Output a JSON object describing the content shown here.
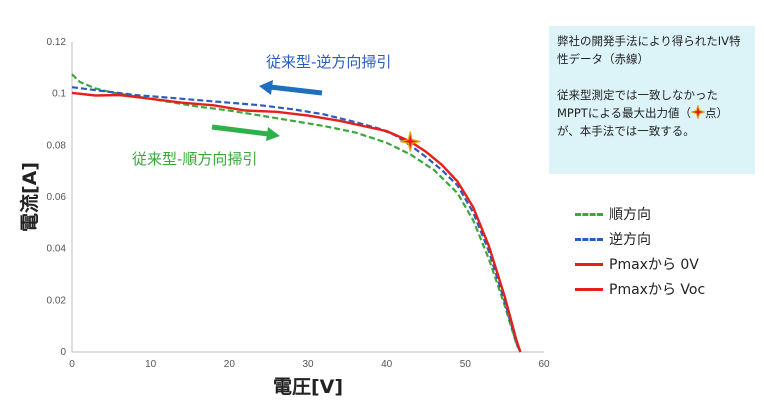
{
  "chart_data": {
    "type": "line",
    "xlabel": "電圧[V]",
    "ylabel": "電流[A]",
    "xlim": [
      0,
      60
    ],
    "ylim": [
      0,
      0.12
    ],
    "x_ticks": [
      "0",
      "10",
      "20",
      "30",
      "40",
      "50",
      "60"
    ],
    "y_ticks": [
      "0",
      "0.02",
      "0.04",
      "0.06",
      "0.08",
      "0.1",
      "0.12"
    ],
    "grid": false,
    "legend_position": "right",
    "series": [
      {
        "name": "順方向",
        "color": "#3aa83a",
        "style": "dashed",
        "x": [
          0,
          1,
          3,
          5,
          8,
          12,
          16,
          20,
          24,
          28,
          32,
          36,
          40,
          43,
          46,
          49,
          51,
          53,
          55,
          56.5,
          57
        ],
        "y": [
          0.1075,
          0.1045,
          0.102,
          0.1005,
          0.099,
          0.097,
          0.095,
          0.0935,
          0.0915,
          0.0895,
          0.0875,
          0.085,
          0.081,
          0.0765,
          0.0705,
          0.0615,
          0.051,
          0.036,
          0.018,
          0.003,
          0
        ]
      },
      {
        "name": "逆方向",
        "color": "#2a5cbf",
        "style": "dashed",
        "x": [
          0,
          4,
          8,
          12,
          16,
          20,
          24,
          28,
          32,
          36,
          39,
          41,
          43,
          45,
          47,
          49,
          51,
          53,
          55,
          56.5,
          57
        ],
        "y": [
          0.1025,
          0.101,
          0.0995,
          0.0985,
          0.0975,
          0.0965,
          0.0955,
          0.094,
          0.092,
          0.089,
          0.0865,
          0.084,
          0.08,
          0.0755,
          0.0705,
          0.0645,
          0.054,
          0.039,
          0.0195,
          0.0035,
          0
        ]
      },
      {
        "name": "Pmaxから 0V",
        "color": "#e5201b",
        "style": "solid",
        "x": [
          0,
          3,
          6,
          10,
          14,
          18,
          22,
          26,
          30,
          34,
          37,
          40,
          43
        ],
        "y": [
          0.1003,
          0.0993,
          0.0995,
          0.098,
          0.0965,
          0.0955,
          0.0935,
          0.093,
          0.0915,
          0.0895,
          0.0875,
          0.0855,
          0.0815
        ]
      },
      {
        "name": "Pmaxから Voc",
        "color": "#e5201b",
        "style": "solid",
        "x": [
          43,
          45,
          47,
          49,
          51,
          53,
          55,
          56.5,
          57
        ],
        "y": [
          0.0815,
          0.0775,
          0.0725,
          0.066,
          0.056,
          0.041,
          0.0215,
          0.0045,
          0
        ]
      }
    ],
    "pmax_point": {
      "x": 43,
      "y": 0.0815
    },
    "annotations": [
      {
        "text": "従来型-逆方向掃引",
        "color": "#2a5cbf"
      },
      {
        "text": "従来型-順方向掃引",
        "color": "#3aa83a"
      }
    ]
  },
  "info_box": {
    "paragraph1": "弊社の開発手法により得られたIV特性データ（赤線）",
    "paragraph2_part1": "従来型測定では一致しなかったMPPTによる最大出力値（",
    "paragraph2_part2": "点）が、本手法では一致する。"
  }
}
